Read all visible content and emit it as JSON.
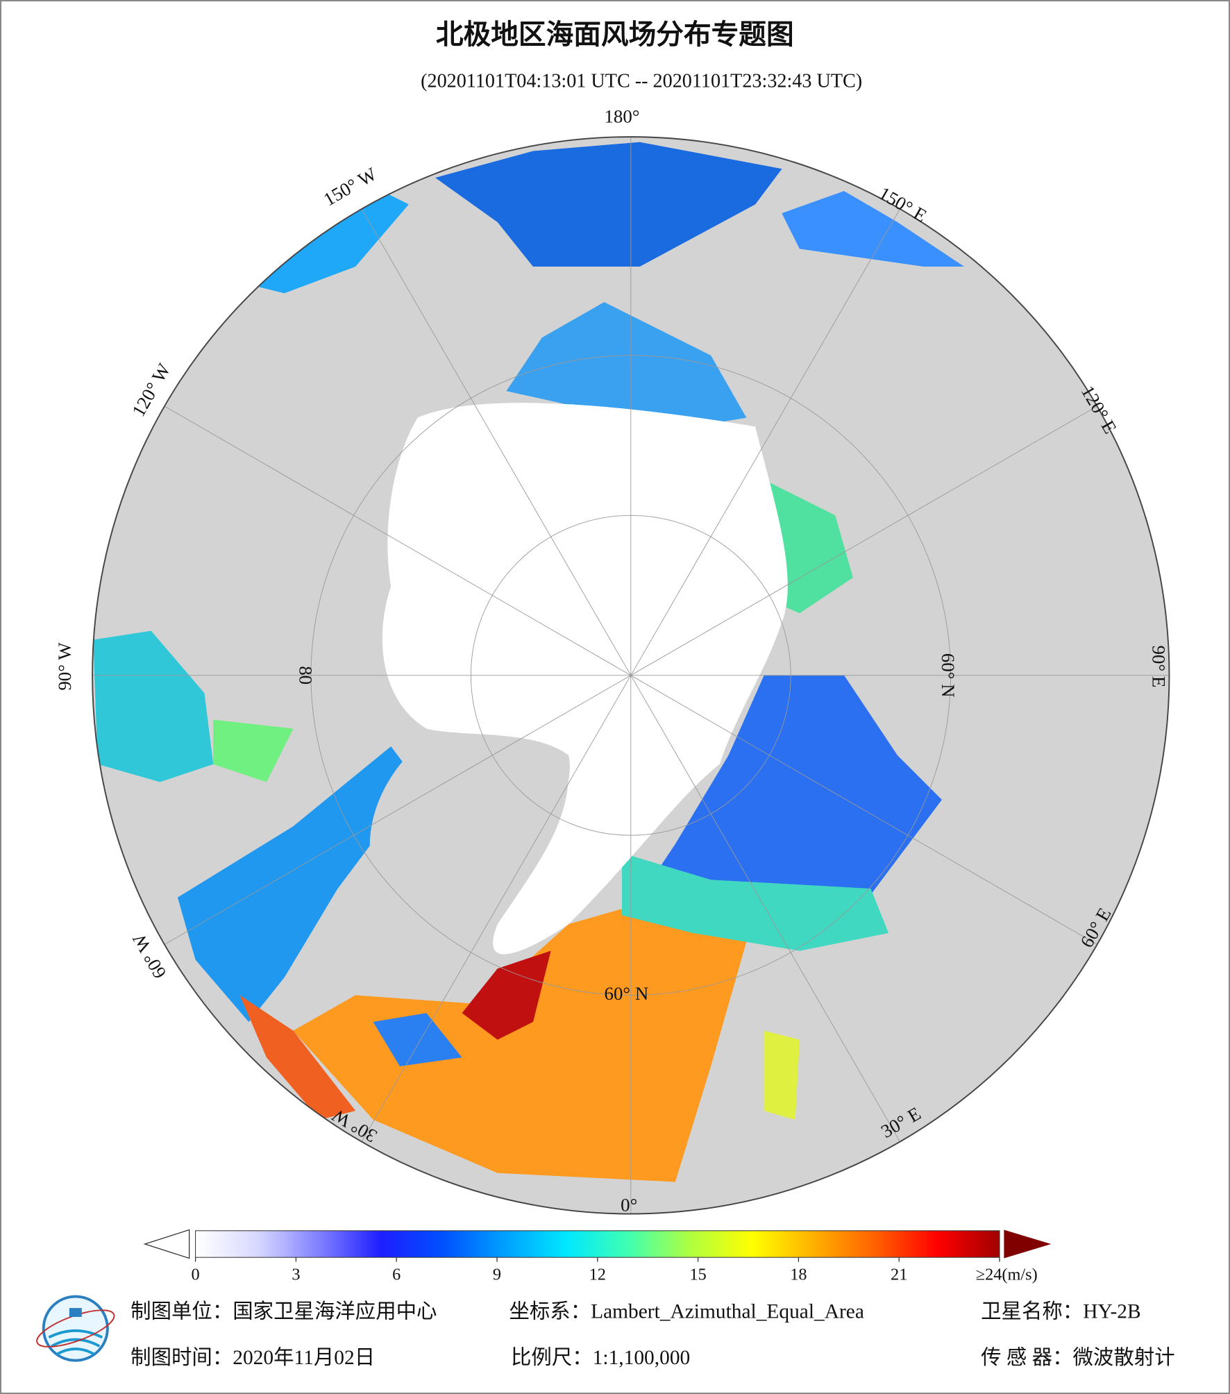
{
  "title": "北极地区海面风场分布专题图",
  "subtitle": "(20201101T04:13:01 UTC -- 20201101T23:32:43 UTC)",
  "map": {
    "longitude_labels": [
      "180°",
      "150° E",
      "120° E",
      "90° E",
      "60° E",
      "30° E",
      "0°",
      "30° W",
      "60° W",
      "90° W",
      "120° W",
      "150° W"
    ],
    "latitude_labels": [
      "60° N",
      "60° N",
      "80"
    ]
  },
  "colorbar": {
    "range": [
      0,
      24
    ],
    "ticks": [
      0,
      3,
      6,
      9,
      12,
      15,
      18,
      21,
      {
        "value": 24,
        "label": "≥24(m/s)"
      }
    ],
    "colors": [
      "#ffffff",
      "#d8d8ff",
      "#8080ff",
      "#1e1eff",
      "#0050ff",
      "#00a0ff",
      "#00e8ff",
      "#40ffb0",
      "#b0ff40",
      "#ffff00",
      "#ffb000",
      "#ff6000",
      "#ff0000",
      "#a00000"
    ]
  },
  "footer": {
    "producer": "制图单位：国家卫星海洋应用中心",
    "coordinate_system": "坐标系：Lambert_Azimuthal_Equal_Area",
    "satellite": "卫星名称：HY-2B",
    "date": "制图时间：2020年11月02日",
    "scale": "比例尺：1:1,100,000",
    "sensor": "传 感 器：微波散射计"
  }
}
